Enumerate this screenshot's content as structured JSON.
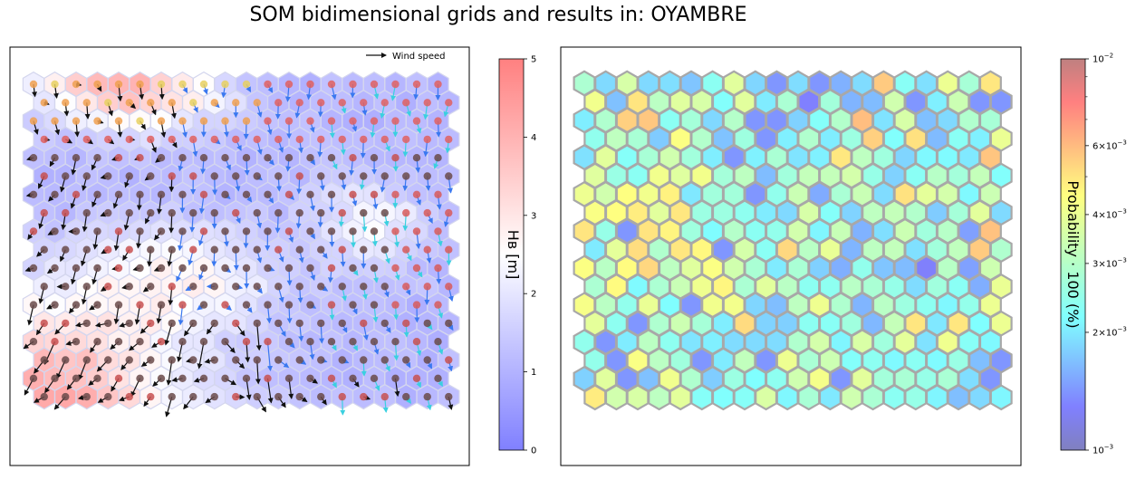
{
  "title": "SOM bidimensional grids and results in: OYAMBRE",
  "chart_data": [
    {
      "type": "heatmap",
      "subtype": "hexagonal-som-grid",
      "grid": {
        "columns": 20,
        "rows": 18
      },
      "legend": {
        "label": "Wind speed",
        "placement": "top-right"
      },
      "colorbar": {
        "label": "H_B [m]",
        "label_display": "Hв [m]",
        "scale": "linear",
        "range": [
          0,
          5
        ],
        "ticks": [
          "0",
          "1",
          "2",
          "3",
          "4",
          "5"
        ],
        "colormap": "bwr",
        "alpha": 0.5
      },
      "values_description": "Cell color encodes H_B (bwr colormap). Each cell carries a dot colored by wave period class and a wind-speed arrow. Top-left and bottom-left corners high H_B (~3.5-4.5), center-right low H_B (~0.5-1.5)."
    },
    {
      "type": "heatmap",
      "subtype": "hexagonal-som-grid",
      "grid": {
        "columns": 20,
        "rows": 18
      },
      "colorbar": {
        "label": "Probability · 100 (%)",
        "scale": "log",
        "range": [
          0.001,
          0.01
        ],
        "ticks": [
          "10^{-3}",
          "2×10^{-3}",
          "3×10^{-3}",
          "4×10^{-3}",
          "6×10^{-3}",
          "10^{-2}"
        ],
        "tick_display": [
          {
            "m": "",
            "e": "−3"
          },
          {
            "m": "2×",
            "e": "−3"
          },
          {
            "m": "3×",
            "e": "−3"
          },
          {
            "m": "4×",
            "e": "−3"
          },
          {
            "m": "6×",
            "e": "−3"
          },
          {
            "m": "",
            "e": "−2"
          }
        ],
        "colormap": "jet",
        "alpha": 0.5
      },
      "values_description": "Probability of occurrence of each SOM cluster; mostly between 2e-3 and 4e-3, a few cells near 5e-3 to 6e-3 (yellow/orange), and low-probability (blue) cells."
    }
  ],
  "colors": {
    "cell_edge_left": "#cfd3ea",
    "cell_edge_right": "#a8a8a8",
    "arrow_dark": "#111111",
    "arrow_blue": "#3a78f0",
    "arrow_cyan": "#3ad0e0"
  }
}
